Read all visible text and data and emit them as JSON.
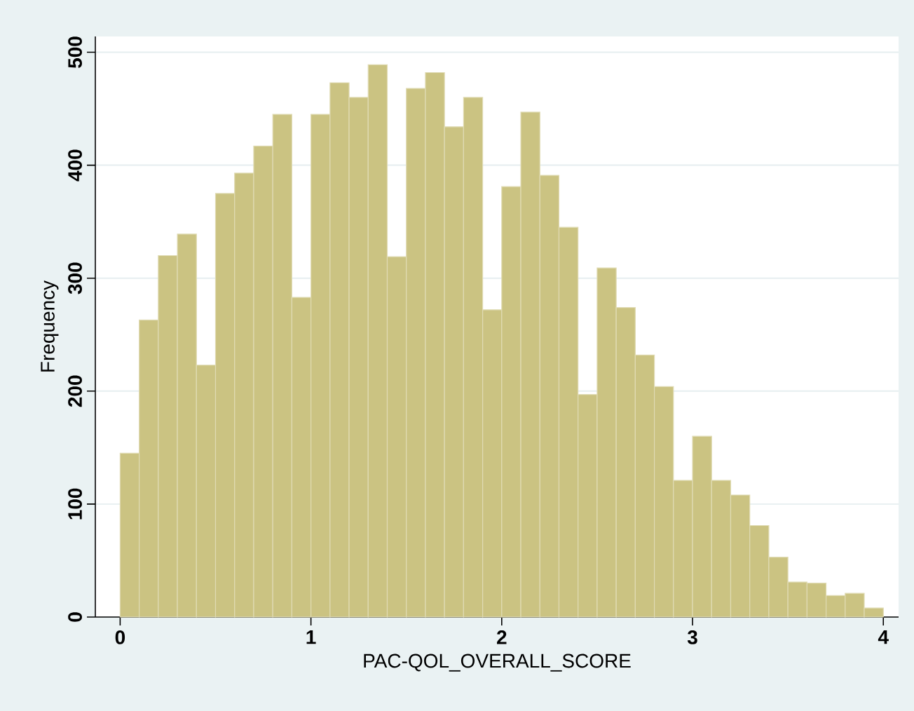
{
  "chart_data": {
    "type": "histogram",
    "xlabel": "PAC-QOL_OVERALL_SCORE",
    "ylabel": "Frequency",
    "bins": [
      0,
      0.1,
      0.2,
      0.3,
      0.4,
      0.5,
      0.6,
      0.7,
      0.8,
      0.9,
      1.0,
      1.1,
      1.2,
      1.3,
      1.4,
      1.5,
      1.6,
      1.7,
      1.8,
      1.9,
      2.0,
      2.1,
      2.2,
      2.3,
      2.4,
      2.5,
      2.6,
      2.7,
      2.8,
      2.9,
      3.0,
      3.1,
      3.2,
      3.3,
      3.4,
      3.5,
      3.6,
      3.7,
      3.8,
      3.9,
      4.0
    ],
    "values": [
      145,
      263,
      320,
      339,
      223,
      375,
      393,
      417,
      445,
      283,
      445,
      473,
      460,
      489,
      319,
      468,
      482,
      434,
      460,
      272,
      381,
      447,
      391,
      345,
      197,
      309,
      274,
      232,
      204,
      121,
      160,
      121,
      108,
      81,
      53,
      31,
      30,
      19,
      21,
      8
    ],
    "color": "#cbc382",
    "xlim": [
      -0.13,
      4.08
    ],
    "ylim": [
      0,
      514
    ],
    "xticks": [
      0,
      1,
      2,
      3,
      4
    ],
    "yticks": [
      0,
      100,
      200,
      300,
      400,
      500
    ],
    "grid": "y"
  }
}
